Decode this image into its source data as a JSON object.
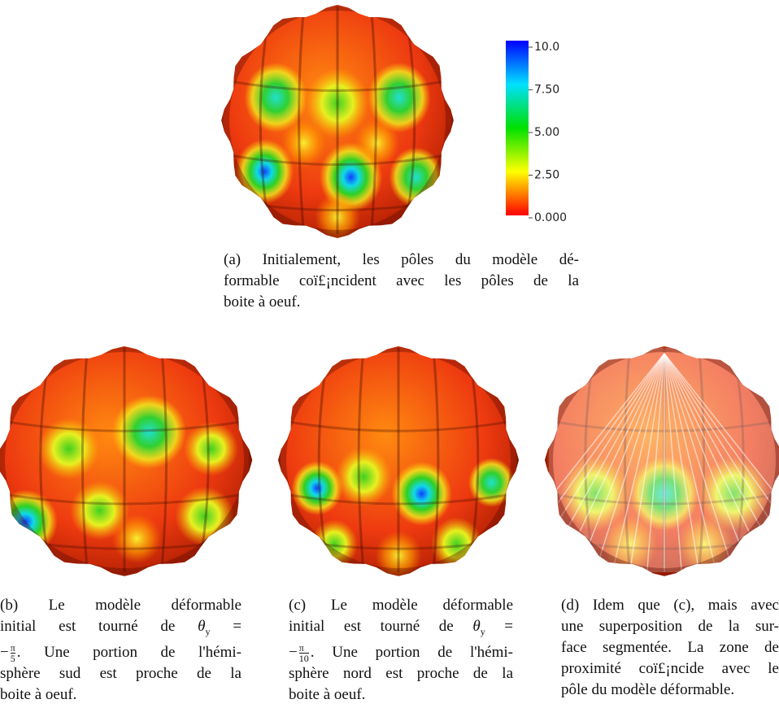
{
  "colorbar": {
    "ticks": [
      "10.0",
      "7.50",
      "5.00",
      "2.50",
      "0.000"
    ]
  },
  "captions": [
    {
      "lines": [
        {
          "text": "(a) Initialement, les pôles du modèle dé-"
        },
        {
          "text": "formable coï£¡ncident avec les pôles de la"
        },
        {
          "text": "boite à oeuf."
        }
      ]
    },
    {
      "lines": [
        {
          "text": "(b) Le modèle déformable"
        },
        {
          "text": "initial est tourné de",
          "var": "θ",
          "sub": "y",
          "op": "="
        },
        {
          "sign": "−",
          "num": "π",
          "den": "5",
          "text": ". Une portion de l'hémi-"
        },
        {
          "text": "sphère sud est proche de la"
        },
        {
          "text": "boite à oeuf."
        }
      ]
    },
    {
      "lines": [
        {
          "text": "(c) Le modèle déformable"
        },
        {
          "text": "initial est tourné de",
          "var": "θ",
          "sub": "y",
          "op": "="
        },
        {
          "sign": "−",
          "num": "π",
          "den": "10",
          "text": ". Une portion de l'hémi-"
        },
        {
          "text": "sphère nord est proche de la"
        },
        {
          "text": "boite à oeuf."
        }
      ]
    },
    {
      "lines": [
        {
          "text": "(d) Idem que (c), mais avec"
        },
        {
          "text": "une superposition de la sur-"
        },
        {
          "text": "face segmentée. La zone de"
        },
        {
          "text": "proximité coï£¡ncide avec le"
        },
        {
          "text": "pôle du modèle déformable."
        }
      ]
    }
  ]
}
